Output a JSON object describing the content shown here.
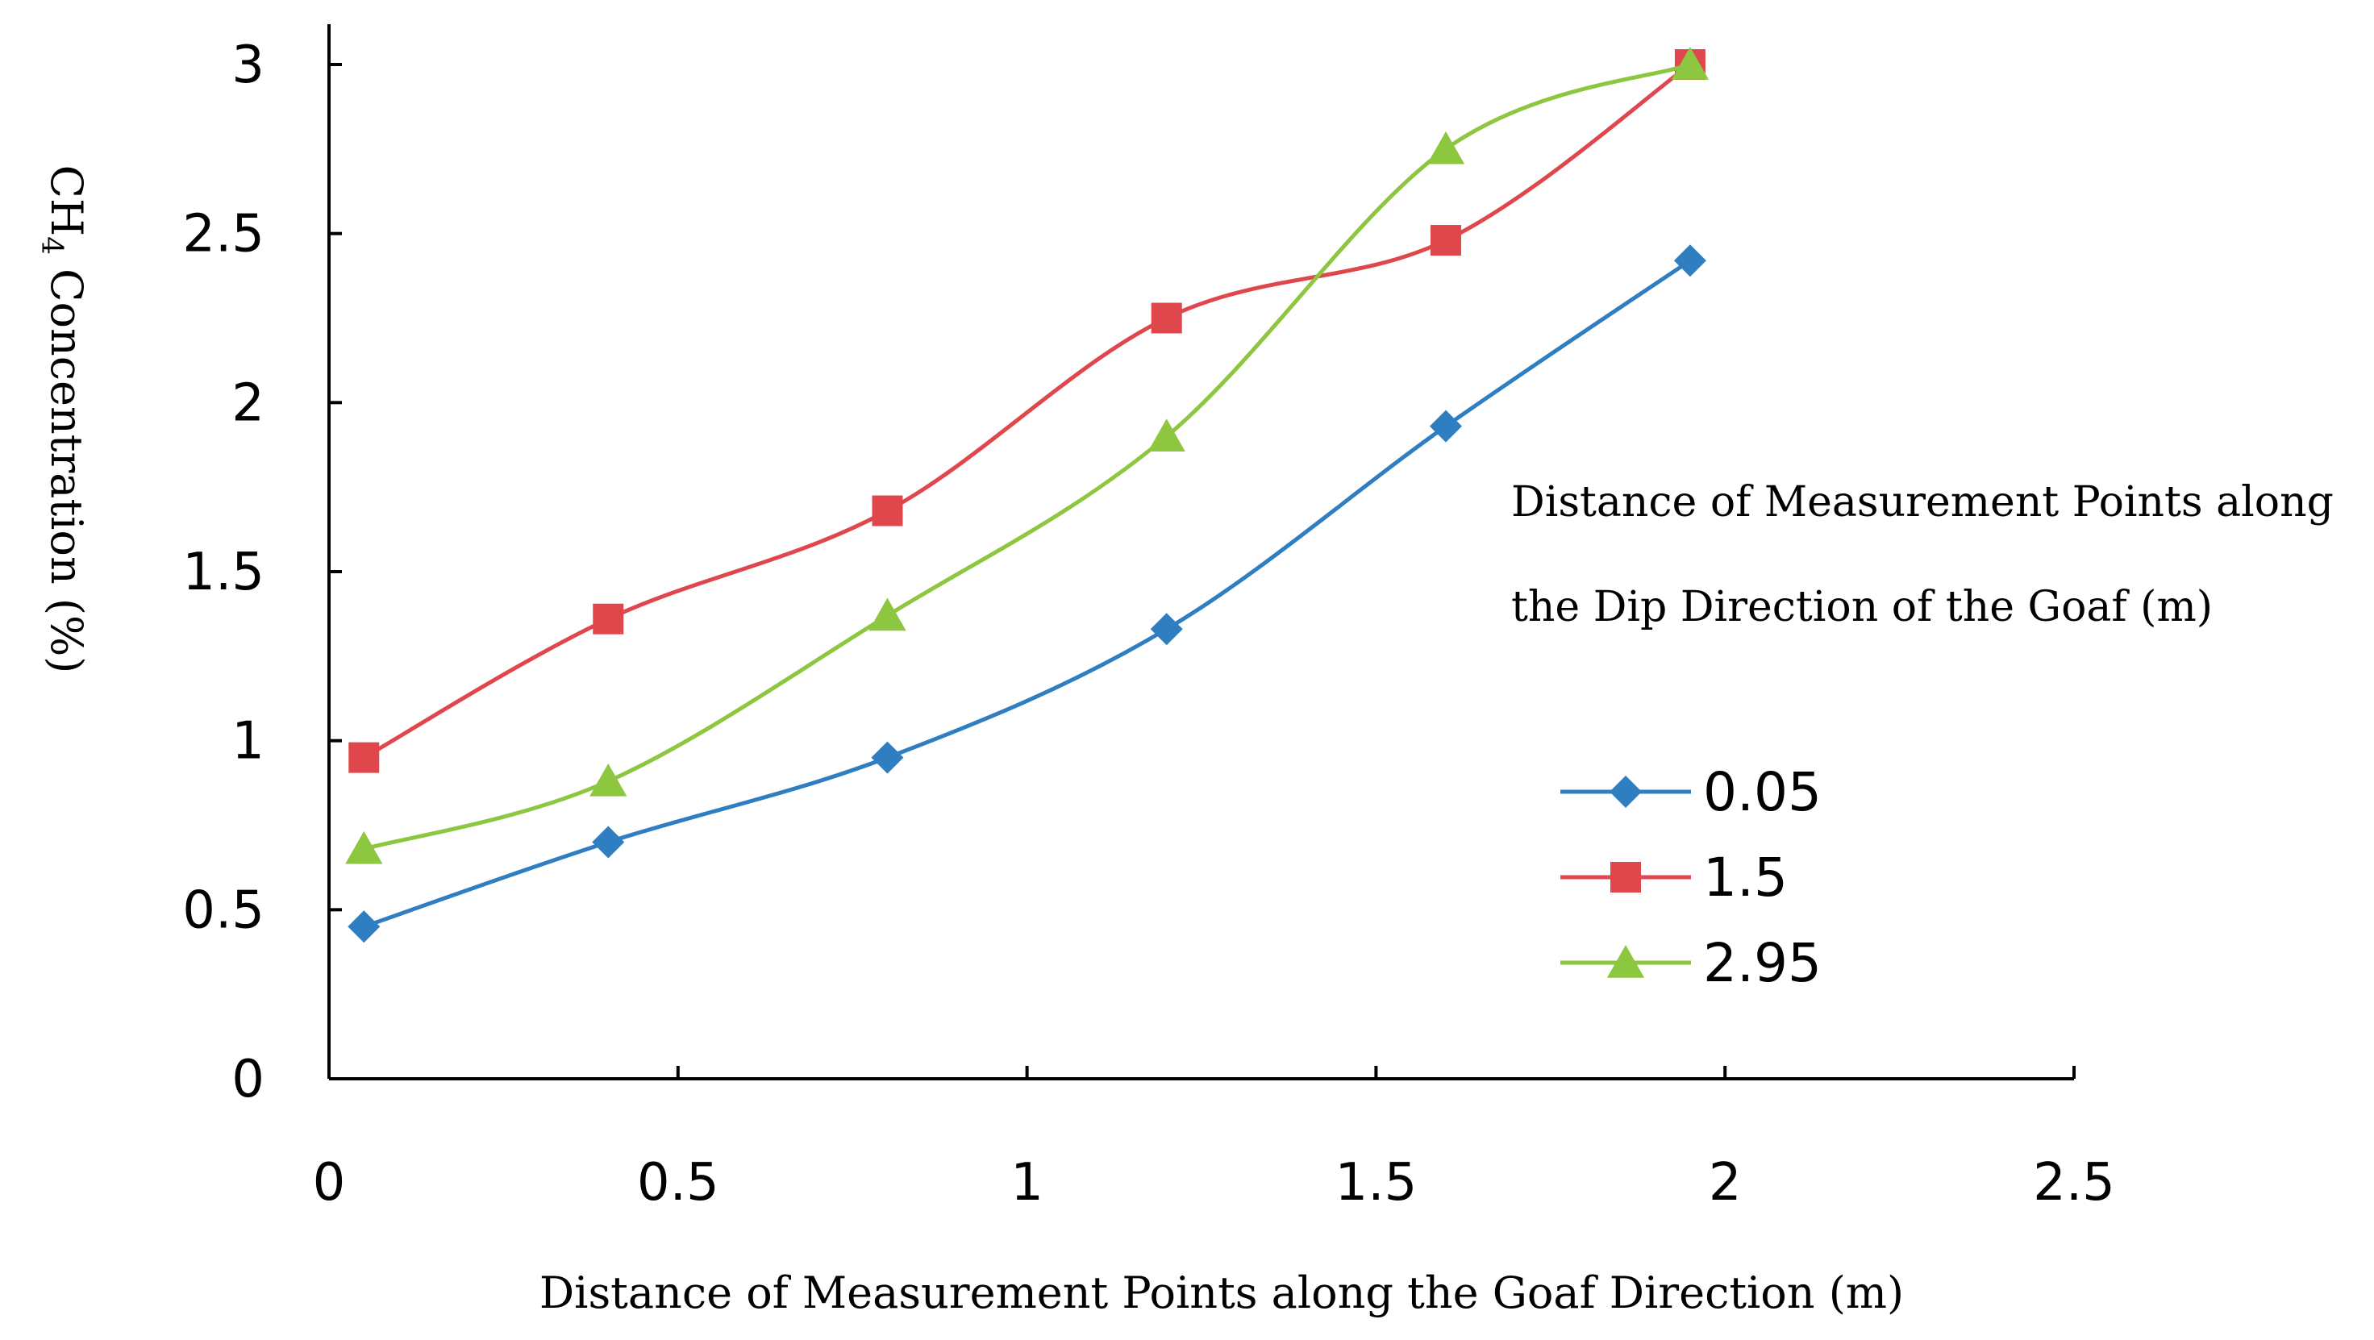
{
  "chart_data": {
    "type": "line",
    "title": "",
    "xlabel": "Distance of Measurement Points along the Goaf Direction (m)",
    "ylabel": "CH4 Concentration (%)",
    "ylabel_parts": {
      "prefix": "CH",
      "subscript": "4",
      "suffix": " Concentration (%)"
    },
    "xlim": [
      0,
      2.5
    ],
    "ylim": [
      0,
      3
    ],
    "x_ticks": [
      "0",
      "0.5",
      "1",
      "1.5",
      "2",
      "2.5"
    ],
    "y_ticks": [
      "0",
      "0.5",
      "1",
      "1.5",
      "2",
      "2.5",
      "3"
    ],
    "x": [
      0.05,
      0.4,
      0.8,
      1.2,
      1.6,
      1.95
    ],
    "legend_title": [
      "Distance of Measurement Points along",
      "the Dip Direction of the Goaf (m)"
    ],
    "legend_position": "right",
    "grid": false,
    "series": [
      {
        "name": "0.05",
        "marker": "diamond",
        "color": "#2E7EC1",
        "values": [
          0.45,
          0.7,
          0.95,
          1.33,
          1.93,
          2.42
        ]
      },
      {
        "name": "1.5",
        "marker": "square",
        "color": "#E0474C",
        "values": [
          0.95,
          1.36,
          1.68,
          2.25,
          2.48,
          3.0
        ]
      },
      {
        "name": "2.95",
        "marker": "triangle",
        "color": "#8DC63F",
        "values": [
          0.68,
          0.88,
          1.37,
          1.9,
          2.75,
          3.0
        ]
      }
    ]
  }
}
